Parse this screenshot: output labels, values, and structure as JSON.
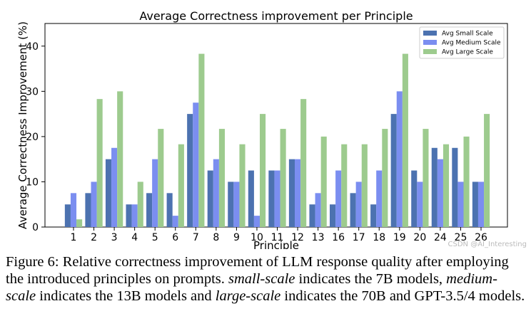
{
  "chart_data": {
    "type": "bar",
    "title": "Average Correctness improvement per Principle",
    "xlabel": "Principle",
    "ylabel": "Average Correctness Improvement (%)",
    "ylim": [
      0,
      45
    ],
    "yticks": [
      0,
      10,
      20,
      30,
      40
    ],
    "legend_position": "top-right",
    "categories": [
      "1",
      "2",
      "3",
      "4",
      "5",
      "6",
      "7",
      "8",
      "9",
      "10",
      "11",
      "12",
      "13",
      "16",
      "17",
      "18",
      "19",
      "20",
      "24",
      "25",
      "26"
    ],
    "series": [
      {
        "name": "Avg Small Scale",
        "color": "#4c72b0",
        "values": [
          5,
          7.5,
          15,
          5,
          7.5,
          7.5,
          25,
          12.5,
          10,
          12.5,
          12.5,
          15,
          5,
          5,
          7.5,
          5,
          25,
          12.5,
          17.5,
          17.5,
          10
        ]
      },
      {
        "name": "Avg Medium Scale",
        "color": "#7b8ef0",
        "values": [
          7.5,
          10,
          17.5,
          5,
          15,
          2.5,
          27.5,
          15,
          10,
          2.5,
          12.5,
          15,
          7.5,
          12.5,
          10,
          12.5,
          30,
          10,
          15,
          10,
          10
        ]
      },
      {
        "name": "Avg Large Scale",
        "color": "#9dcb8e",
        "values": [
          1.7,
          28.3,
          30,
          10,
          21.7,
          18.3,
          38.3,
          21.7,
          18.3,
          25,
          21.7,
          28.3,
          20,
          18.3,
          18.3,
          21.7,
          38.3,
          21.7,
          18.3,
          20,
          25
        ]
      }
    ]
  },
  "caption": {
    "prefix": "Figure 6: Relative correctness improvement of LLM response quality after employing the introduced principles on prompts. ",
    "small_term": "small-scale",
    "small_desc": " indicates the 7B models, ",
    "medium_term": "medium-scale",
    "medium_desc": " indicates the 13B models and ",
    "large_term": "large-scale",
    "large_desc": " indicates the 70B and GPT-3.5/4 models."
  },
  "watermark": "CSDN @AI_Interesting"
}
